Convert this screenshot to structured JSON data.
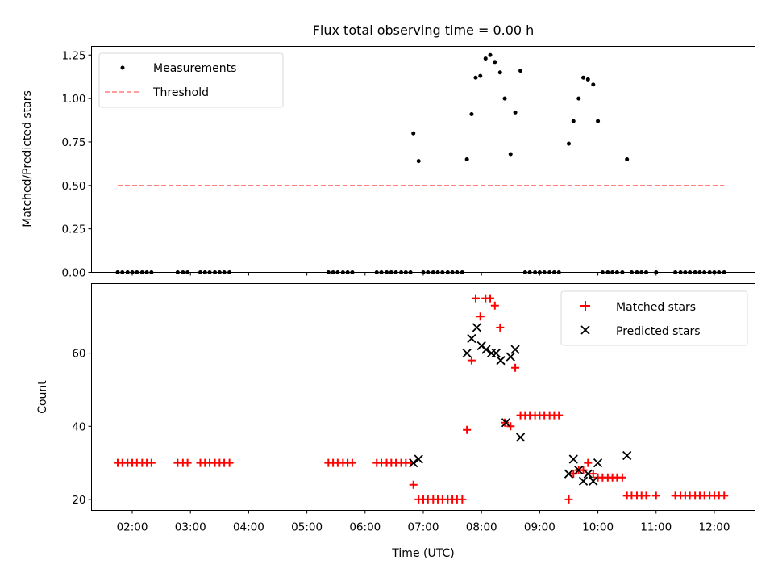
{
  "title": "Flux total observing time = 0.00 h",
  "chart_data": [
    {
      "type": "scatter",
      "ylabel": "Matched/Predicted stars",
      "xlim": [
        1.3,
        12.7
      ],
      "ylim": [
        0,
        1.3
      ],
      "yticks": [
        0.0,
        0.25,
        0.5,
        0.75,
        1.0,
        1.25
      ],
      "ytick_labels": [
        "0.00",
        "0.25",
        "0.50",
        "0.75",
        "1.00",
        "1.25"
      ],
      "legend": {
        "placement": "top-left",
        "entries": [
          "Measurements",
          "Threshold"
        ]
      },
      "grid": false,
      "series": [
        {
          "name": "Measurements",
          "marker": "dot",
          "color": "#000000",
          "x": [
            1.75,
            1.83,
            1.92,
            2.0,
            2.08,
            2.17,
            2.25,
            2.33,
            2.78,
            2.87,
            2.95,
            3.17,
            3.25,
            3.33,
            3.42,
            3.5,
            3.58,
            3.67,
            5.37,
            5.45,
            5.53,
            5.62,
            5.7,
            5.78,
            6.2,
            6.28,
            6.37,
            6.45,
            6.53,
            6.62,
            6.7,
            6.78,
            6.83,
            6.92,
            7.0,
            7.08,
            7.17,
            7.25,
            7.33,
            7.42,
            7.5,
            7.58,
            7.67,
            7.75,
            7.83,
            7.9,
            7.98,
            8.07,
            8.15,
            8.23,
            8.32,
            8.4,
            8.5,
            8.58,
            8.67,
            8.75,
            8.83,
            8.92,
            9.0,
            9.08,
            9.17,
            9.25,
            9.33,
            9.5,
            9.58,
            9.67,
            9.75,
            9.83,
            9.92,
            10.0,
            10.08,
            10.17,
            10.25,
            10.33,
            10.42,
            10.5,
            10.58,
            10.67,
            10.75,
            10.83,
            11.0,
            11.33,
            11.42,
            11.5,
            11.58,
            11.67,
            11.75,
            11.83,
            11.92,
            12.0,
            12.08,
            12.17
          ],
          "y": [
            0,
            0,
            0,
            0,
            0,
            0,
            0,
            0,
            0,
            0,
            0,
            0,
            0,
            0,
            0,
            0,
            0,
            0,
            0,
            0,
            0,
            0,
            0,
            0,
            0,
            0,
            0,
            0,
            0,
            0,
            0,
            0,
            0.8,
            0.64,
            0,
            0,
            0,
            0,
            0,
            0,
            0,
            0,
            0,
            0.65,
            0.91,
            1.12,
            1.13,
            1.23,
            1.25,
            1.21,
            1.15,
            1.0,
            0.68,
            0.92,
            1.16,
            0,
            0,
            0,
            0,
            0,
            0,
            0,
            0,
            0.74,
            0.87,
            1.0,
            1.12,
            1.11,
            1.08,
            0.87,
            0,
            0,
            0,
            0,
            0,
            0.65,
            0,
            0,
            0,
            0,
            0,
            0,
            0,
            0,
            0,
            0,
            0,
            0,
            0,
            0,
            0,
            0
          ]
        },
        {
          "name": "Threshold",
          "style": "dashed",
          "color": "#ff7f7f",
          "x": [
            1.75,
            12.17
          ],
          "y": [
            0.5,
            0.5
          ]
        }
      ]
    },
    {
      "type": "scatter",
      "xlabel": "Time (UTC)",
      "ylabel": "Count",
      "xlim": [
        1.3,
        12.7
      ],
      "ylim": [
        17,
        79
      ],
      "xticks": [
        2,
        3,
        4,
        5,
        6,
        7,
        8,
        9,
        10,
        11,
        12
      ],
      "xtick_labels": [
        "02:00",
        "03:00",
        "04:00",
        "05:00",
        "06:00",
        "07:00",
        "08:00",
        "09:00",
        "10:00",
        "11:00",
        "12:00"
      ],
      "yticks": [
        20,
        40,
        60
      ],
      "ytick_labels": [
        "20",
        "40",
        "60"
      ],
      "legend": {
        "placement": "top-right",
        "entries": [
          "Matched stars",
          "Predicted stars"
        ]
      },
      "grid": false,
      "series": [
        {
          "name": "Matched stars",
          "marker": "plus",
          "color": "#ff0000",
          "x": [
            1.75,
            1.83,
            1.92,
            2.0,
            2.08,
            2.17,
            2.25,
            2.33,
            2.78,
            2.87,
            2.95,
            3.17,
            3.25,
            3.33,
            3.42,
            3.5,
            3.58,
            3.67,
            5.37,
            5.45,
            5.53,
            5.62,
            5.7,
            5.78,
            6.2,
            6.28,
            6.37,
            6.45,
            6.53,
            6.62,
            6.7,
            6.78,
            6.83,
            6.92,
            7.0,
            7.08,
            7.17,
            7.25,
            7.33,
            7.42,
            7.5,
            7.58,
            7.67,
            7.75,
            7.83,
            7.9,
            7.98,
            8.07,
            8.15,
            8.23,
            8.32,
            8.4,
            8.5,
            8.58,
            8.67,
            8.75,
            8.83,
            8.92,
            9.0,
            9.08,
            9.17,
            9.25,
            9.33,
            9.5,
            9.58,
            9.67,
            9.75,
            9.83,
            9.92,
            10.0,
            10.08,
            10.17,
            10.25,
            10.33,
            10.42,
            10.5,
            10.58,
            10.67,
            10.75,
            10.83,
            11.0,
            11.33,
            11.42,
            11.5,
            11.58,
            11.67,
            11.75,
            11.83,
            11.92,
            12.0,
            12.08,
            12.17
          ],
          "y": [
            30,
            30,
            30,
            30,
            30,
            30,
            30,
            30,
            30,
            30,
            30,
            30,
            30,
            30,
            30,
            30,
            30,
            30,
            30,
            30,
            30,
            30,
            30,
            30,
            30,
            30,
            30,
            30,
            30,
            30,
            30,
            30,
            24,
            20,
            20,
            20,
            20,
            20,
            20,
            20,
            20,
            20,
            20,
            39,
            58,
            75,
            70,
            75,
            75,
            73,
            67,
            41,
            40,
            56,
            43,
            43,
            43,
            43,
            43,
            43,
            43,
            43,
            43,
            20,
            27,
            28,
            28,
            30,
            27,
            26,
            26,
            26,
            26,
            26,
            26,
            21,
            21,
            21,
            21,
            21,
            21,
            21,
            21,
            21,
            21,
            21,
            21,
            21,
            21,
            21,
            21,
            21
          ]
        },
        {
          "name": "Predicted stars",
          "marker": "x",
          "color": "#000000",
          "x": [
            6.83,
            6.92,
            7.75,
            7.83,
            7.92,
            8.0,
            8.08,
            8.17,
            8.25,
            8.33,
            8.42,
            8.5,
            8.58,
            8.67,
            9.5,
            9.58,
            9.67,
            9.75,
            9.83,
            9.92,
            10.0,
            10.5
          ],
          "y": [
            30,
            31,
            60,
            64,
            67,
            62,
            61,
            60,
            60,
            58,
            41,
            59,
            61,
            37,
            27,
            31,
            28,
            25,
            27,
            25,
            30,
            32
          ]
        }
      ]
    }
  ]
}
